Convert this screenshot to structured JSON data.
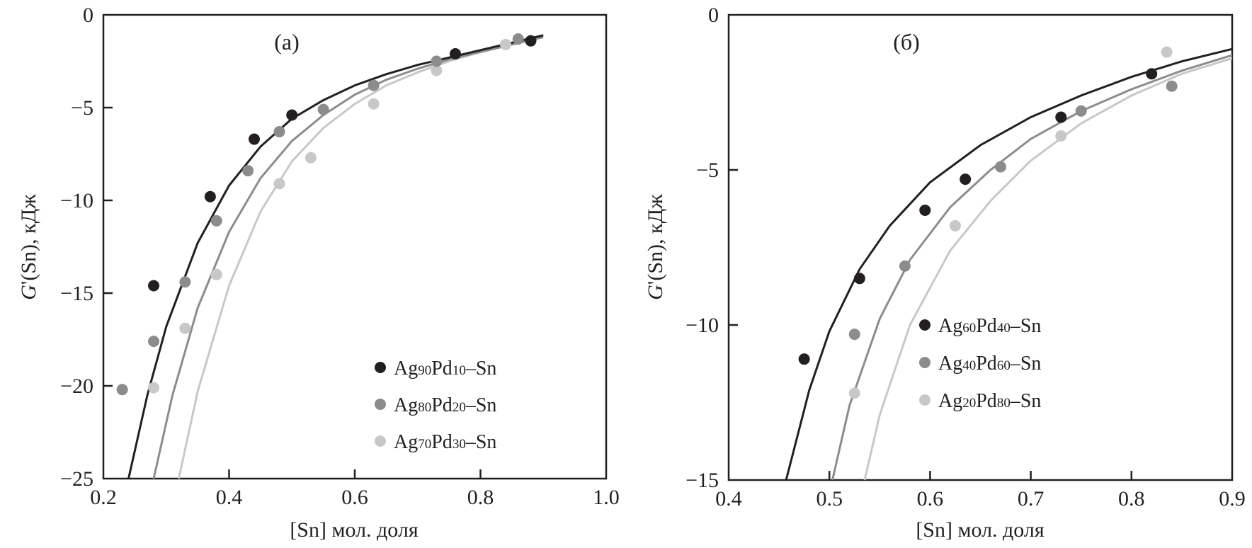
{
  "chart_data": [
    {
      "type": "scatter",
      "panel_label": "(a)",
      "xlabel": "[Sn] мол. доля",
      "ylabel_italic": "G",
      "ylabel_rest": "'(Sn), кДж",
      "xlim": [
        0.2,
        1.0
      ],
      "ylim": [
        -25,
        0
      ],
      "xticks": [
        0.2,
        0.4,
        0.6,
        0.8,
        1.0
      ],
      "xtick_labels": [
        "0.2",
        "0.4",
        "0.6",
        "0.8",
        "1.0"
      ],
      "yticks": [
        0,
        -5,
        -10,
        -15,
        -20,
        -25
      ],
      "ytick_labels": [
        "0",
        "−5",
        "−10",
        "−15",
        "−20",
        "−25"
      ],
      "grid": false,
      "legend_position": "bottom-right",
      "series": [
        {
          "name": "Ag90Pd10–Sn",
          "legend": {
            "a": "Ag",
            "a_sub": "90",
            "b": "Pd",
            "b_sub": "10",
            "c": "–Sn"
          },
          "color": "#231f20",
          "points": [
            [
              0.28,
              -14.6
            ],
            [
              0.37,
              -9.8
            ],
            [
              0.44,
              -6.7
            ],
            [
              0.5,
              -5.4
            ],
            [
              0.76,
              -2.1
            ],
            [
              0.88,
              -1.4
            ]
          ],
          "curve": [
            [
              0.24,
              -25
            ],
            [
              0.27,
              -20.5
            ],
            [
              0.3,
              -16.8
            ],
            [
              0.35,
              -12.3
            ],
            [
              0.4,
              -9.2
            ],
            [
              0.45,
              -7.1
            ],
            [
              0.5,
              -5.6
            ],
            [
              0.55,
              -4.6
            ],
            [
              0.6,
              -3.8
            ],
            [
              0.65,
              -3.2
            ],
            [
              0.7,
              -2.7
            ],
            [
              0.75,
              -2.3
            ],
            [
              0.8,
              -1.9
            ],
            [
              0.85,
              -1.5
            ],
            [
              0.9,
              -1.1
            ]
          ]
        },
        {
          "name": "Ag80Pd20–Sn",
          "legend": {
            "a": "Ag",
            "a_sub": "80",
            "b": "Pd",
            "b_sub": "20",
            "c": "–Sn"
          },
          "color": "#8c8c8e",
          "points": [
            [
              0.23,
              -20.2
            ],
            [
              0.28,
              -17.6
            ],
            [
              0.33,
              -14.4
            ],
            [
              0.38,
              -11.1
            ],
            [
              0.43,
              -8.4
            ],
            [
              0.48,
              -6.3
            ],
            [
              0.55,
              -5.1
            ],
            [
              0.63,
              -3.8
            ],
            [
              0.73,
              -2.5
            ],
            [
              0.86,
              -1.3
            ]
          ],
          "curve": [
            [
              0.28,
              -25
            ],
            [
              0.31,
              -20.5
            ],
            [
              0.35,
              -15.8
            ],
            [
              0.4,
              -11.7
            ],
            [
              0.45,
              -8.8
            ],
            [
              0.5,
              -6.8
            ],
            [
              0.55,
              -5.4
            ],
            [
              0.6,
              -4.3
            ],
            [
              0.65,
              -3.5
            ],
            [
              0.7,
              -2.9
            ],
            [
              0.75,
              -2.4
            ],
            [
              0.8,
              -2.0
            ],
            [
              0.85,
              -1.6
            ],
            [
              0.9,
              -1.2
            ]
          ]
        },
        {
          "name": "Ag70Pd30–Sn",
          "legend": {
            "a": "Ag",
            "a_sub": "70",
            "b": "Pd",
            "b_sub": "30",
            "c": "–Sn"
          },
          "color": "#c8c8ca",
          "points": [
            [
              0.28,
              -20.1
            ],
            [
              0.33,
              -16.9
            ],
            [
              0.38,
              -14.0
            ],
            [
              0.48,
              -9.1
            ],
            [
              0.53,
              -7.7
            ],
            [
              0.63,
              -4.8
            ],
            [
              0.73,
              -3.0
            ],
            [
              0.84,
              -1.6
            ]
          ],
          "curve": [
            [
              0.32,
              -25
            ],
            [
              0.35,
              -20.3
            ],
            [
              0.4,
              -14.6
            ],
            [
              0.45,
              -10.6
            ],
            [
              0.5,
              -7.9
            ],
            [
              0.55,
              -6.1
            ],
            [
              0.6,
              -4.8
            ],
            [
              0.65,
              -3.8
            ],
            [
              0.7,
              -3.1
            ],
            [
              0.75,
              -2.5
            ],
            [
              0.8,
              -2.0
            ],
            [
              0.85,
              -1.6
            ],
            [
              0.9,
              -1.2
            ]
          ]
        }
      ]
    },
    {
      "type": "scatter",
      "panel_label": "(б)",
      "xlabel": "[Sn] мол. доля",
      "ylabel_italic": "G",
      "ylabel_rest": "'(Sn), кДж",
      "xlim": [
        0.4,
        0.9
      ],
      "ylim": [
        -15,
        0
      ],
      "xticks": [
        0.4,
        0.5,
        0.6,
        0.7,
        0.8,
        0.9
      ],
      "xtick_labels": [
        "0.4",
        "0.5",
        "0.6",
        "0.7",
        "0.8",
        "0.9"
      ],
      "yticks": [
        0,
        -5,
        -10,
        -15
      ],
      "ytick_labels": [
        "0",
        "−5",
        "−10",
        "−15"
      ],
      "grid": false,
      "legend_position": "bottom-right",
      "series": [
        {
          "name": "Ag60Pd40–Sn",
          "legend": {
            "a": "Ag",
            "a_sub": "60",
            "b": "Pd",
            "b_sub": "40",
            "c": "–Sn"
          },
          "color": "#231f20",
          "points": [
            [
              0.475,
              -11.1
            ],
            [
              0.53,
              -8.5
            ],
            [
              0.595,
              -6.3
            ],
            [
              0.635,
              -5.3
            ],
            [
              0.73,
              -3.3
            ],
            [
              0.82,
              -1.9
            ]
          ],
          "curve": [
            [
              0.457,
              -15
            ],
            [
              0.48,
              -12.1
            ],
            [
              0.5,
              -10.2
            ],
            [
              0.53,
              -8.2
            ],
            [
              0.56,
              -6.8
            ],
            [
              0.6,
              -5.4
            ],
            [
              0.65,
              -4.2
            ],
            [
              0.7,
              -3.3
            ],
            [
              0.75,
              -2.6
            ],
            [
              0.8,
              -2.0
            ],
            [
              0.85,
              -1.5
            ],
            [
              0.9,
              -1.1
            ]
          ]
        },
        {
          "name": "Ag40Pd60–Sn",
          "legend": {
            "a": "Ag",
            "a_sub": "40",
            "b": "Pd",
            "b_sub": "60",
            "c": "–Sn"
          },
          "color": "#8c8c8e",
          "points": [
            [
              0.525,
              -10.3
            ],
            [
              0.575,
              -8.1
            ],
            [
              0.67,
              -4.9
            ],
            [
              0.75,
              -3.1
            ],
            [
              0.84,
              -2.3
            ]
          ],
          "curve": [
            [
              0.503,
              -15
            ],
            [
              0.52,
              -12.6
            ],
            [
              0.55,
              -9.8
            ],
            [
              0.58,
              -7.9
            ],
            [
              0.62,
              -6.2
            ],
            [
              0.66,
              -5.0
            ],
            [
              0.7,
              -4.0
            ],
            [
              0.75,
              -3.1
            ],
            [
              0.8,
              -2.4
            ],
            [
              0.85,
              -1.8
            ],
            [
              0.9,
              -1.3
            ]
          ]
        },
        {
          "name": "Ag20Pd80–Sn",
          "legend": {
            "a": "Ag",
            "a_sub": "20",
            "b": "Pd",
            "b_sub": "80",
            "c": "–Sn"
          },
          "color": "#c8c8ca",
          "points": [
            [
              0.525,
              -12.2
            ],
            [
              0.625,
              -6.8
            ],
            [
              0.73,
              -3.9
            ],
            [
              0.835,
              -1.2
            ]
          ],
          "curve": [
            [
              0.535,
              -15
            ],
            [
              0.55,
              -12.9
            ],
            [
              0.58,
              -10.0
            ],
            [
              0.62,
              -7.6
            ],
            [
              0.66,
              -6.0
            ],
            [
              0.7,
              -4.7
            ],
            [
              0.75,
              -3.5
            ],
            [
              0.8,
              -2.6
            ],
            [
              0.85,
              -1.9
            ],
            [
              0.9,
              -1.4
            ]
          ]
        }
      ]
    }
  ]
}
